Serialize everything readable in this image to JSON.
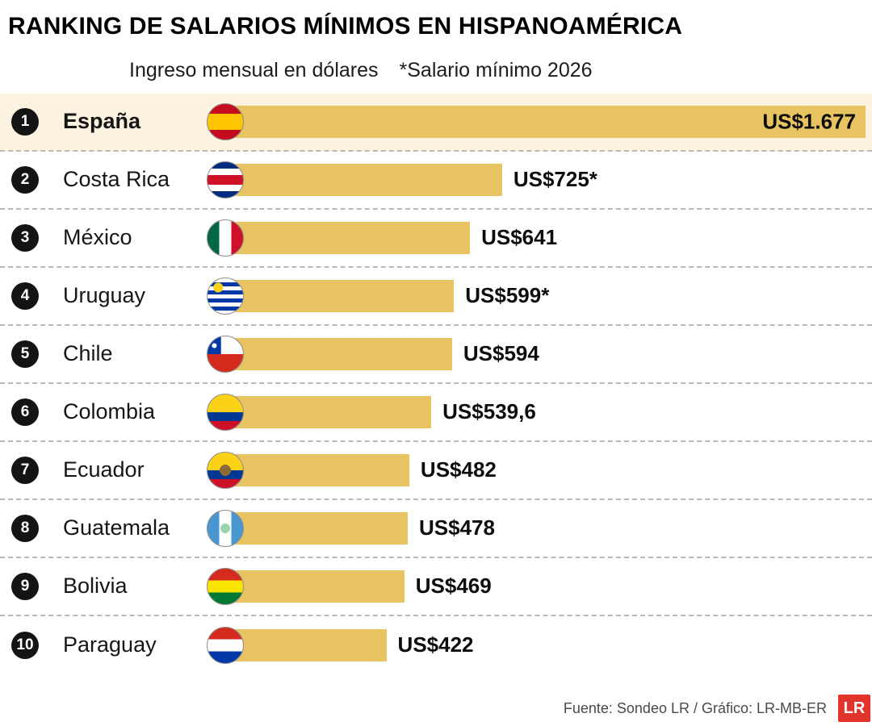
{
  "header": {
    "title": "RANKING DE SALARIOS MÍNIMOS EN HISPANOAMÉRICA",
    "subtitle": "Ingreso mensual en dólares",
    "note": "*Salario mínimo 2026"
  },
  "chart_data": {
    "type": "bar",
    "orientation": "horizontal",
    "title": "RANKING DE SALARIOS MÍNIMOS EN HISPANOAMÉRICA",
    "subtitle": "Ingreso mensual en dólares",
    "note": "*Salario mínimo 2026",
    "unit": "US$ por mes",
    "xlim": [
      0,
      1677
    ],
    "rows": [
      {
        "rank": 1,
        "country": "España",
        "flag": "es",
        "value": 1677,
        "label": "US$1.677",
        "highlight": true,
        "label_inside": true
      },
      {
        "rank": 2,
        "country": "Costa Rica",
        "flag": "cr",
        "value": 725,
        "label": "US$725*"
      },
      {
        "rank": 3,
        "country": "México",
        "flag": "mx",
        "value": 641,
        "label": "US$641"
      },
      {
        "rank": 4,
        "country": "Uruguay",
        "flag": "uy",
        "value": 599,
        "label": "US$599*"
      },
      {
        "rank": 5,
        "country": "Chile",
        "flag": "cl",
        "value": 594,
        "label": "US$594"
      },
      {
        "rank": 6,
        "country": "Colombia",
        "flag": "co",
        "value": 539.6,
        "label": "US$539,6"
      },
      {
        "rank": 7,
        "country": "Ecuador",
        "flag": "ec",
        "value": 482,
        "label": "US$482"
      },
      {
        "rank": 8,
        "country": "Guatemala",
        "flag": "gt",
        "value": 478,
        "label": "US$478"
      },
      {
        "rank": 9,
        "country": "Bolivia",
        "flag": "bo",
        "value": 469,
        "label": "US$469"
      },
      {
        "rank": 10,
        "country": "Paraguay",
        "flag": "py",
        "value": 422,
        "label": "US$422"
      }
    ]
  },
  "footer": {
    "source": "Fuente: Sondeo LR  / Gráfico: LR-MB-ER",
    "logo": "LR"
  },
  "colors": {
    "bar": "#e8c362",
    "highlight_row": "#fbf2df",
    "rank_badge": "#141414",
    "logo_red": "#e0342c"
  }
}
